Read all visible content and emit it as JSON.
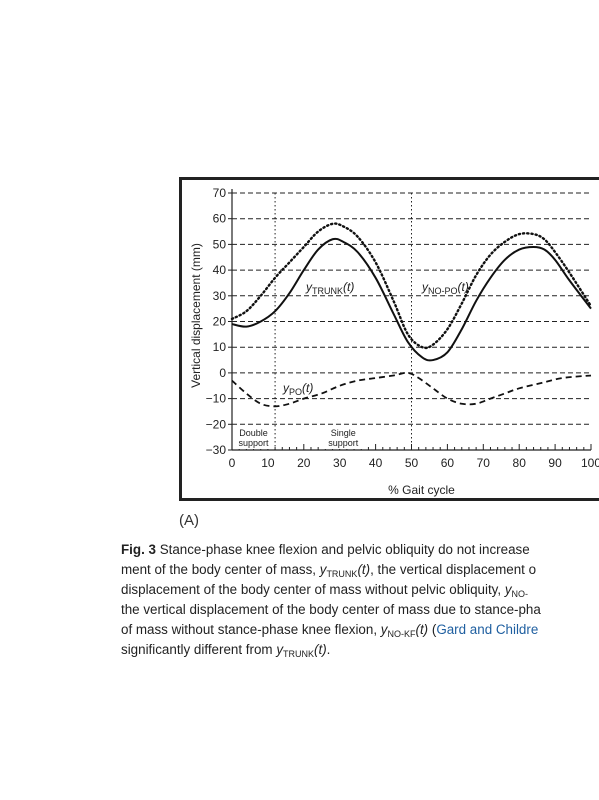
{
  "figure": {
    "panel_label": "(A)",
    "xlabel": "% Gait cycle",
    "ylabel": "Vertical displacement (mm)",
    "phase_labels": [
      {
        "line1": "Double",
        "line2": "support"
      },
      {
        "line1": "Single",
        "line2": "support"
      }
    ],
    "series_labels": {
      "trunk": {
        "main": "y",
        "sub": "TRUNK",
        "tail": "(t)"
      },
      "no_po": {
        "main": "y",
        "sub": "NO-PO",
        "tail": "(t)"
      },
      "po": {
        "main": "y",
        "sub": "PO",
        "tail": "(t)"
      }
    }
  },
  "chart_data": {
    "type": "line",
    "xlabel": "% Gait cycle",
    "ylabel": "Vertical displacement (mm)",
    "xlim": [
      0,
      100
    ],
    "ylim": [
      -30,
      70
    ],
    "xticks": [
      "0",
      "10",
      "20",
      "30",
      "40",
      "50",
      "60",
      "70",
      "80",
      "90",
      "100"
    ],
    "yticks": [
      "70",
      "60",
      "50",
      "40",
      "30",
      "20",
      "10",
      "0",
      "−10",
      "−20",
      "−30"
    ],
    "grid": true,
    "vertical_markers": [
      12,
      50
    ],
    "series": [
      {
        "name": "yTRUNK(t)",
        "style": "solid",
        "x": [
          0,
          4,
          8,
          12,
          16,
          20,
          24,
          28,
          31,
          35,
          40,
          45,
          49,
          53,
          56,
          60,
          64,
          68,
          72,
          76,
          80,
          84,
          87,
          90,
          94,
          100
        ],
        "y": [
          19,
          18,
          20,
          24,
          31,
          40,
          48,
          52,
          51,
          47,
          37,
          23,
          12,
          6,
          5,
          8,
          17,
          28,
          37,
          44,
          48,
          49,
          48,
          44,
          36,
          25
        ]
      },
      {
        "name": "yNO-PO(t)",
        "style": "dotted",
        "x": [
          0,
          4,
          8,
          12,
          16,
          20,
          24,
          28,
          31,
          35,
          40,
          45,
          49,
          53,
          56,
          60,
          64,
          68,
          72,
          76,
          80,
          84,
          87,
          90,
          94,
          100
        ],
        "y": [
          21,
          24,
          30,
          37,
          43,
          49,
          55,
          58,
          57,
          53,
          43,
          28,
          15,
          10,
          11,
          17,
          27,
          38,
          46,
          51,
          54,
          54,
          52,
          47,
          39,
          26
        ]
      },
      {
        "name": "yPO(t)",
        "style": "dashed",
        "x": [
          0,
          4,
          8,
          12,
          16,
          20,
          25,
          30,
          35,
          40,
          45,
          49,
          52,
          56,
          60,
          64,
          68,
          72,
          76,
          80,
          86,
          92,
          100
        ],
        "y": [
          -3,
          -8,
          -12,
          -13,
          -12,
          -10,
          -8,
          -5,
          -3,
          -2,
          -1,
          0,
          -2,
          -6,
          -10,
          -12,
          -12,
          -10,
          -8,
          -6,
          -4,
          -2,
          -1
        ]
      }
    ]
  },
  "caption": {
    "lines": [
      [
        {
          "t": "Fig. 3",
          "s": "bold"
        },
        {
          "t": "  Stance-phase knee flexion and pelvic obliquity do not increase",
          "s": ""
        }
      ],
      [
        {
          "t": "ment of the body center of mass, ",
          "s": ""
        },
        {
          "t": "y",
          "s": "ital"
        },
        {
          "t": "TRUNK",
          "s": "sub"
        },
        {
          "t": "(t)",
          "s": "ital"
        },
        {
          "t": ", the vertical displacement o",
          "s": ""
        }
      ],
      [
        {
          "t": "displacement of the body center of mass without pelvic obliquity, ",
          "s": ""
        },
        {
          "t": "y",
          "s": "ital"
        },
        {
          "t": "NO-",
          "s": "sub"
        }
      ],
      [
        {
          "t": "the vertical displacement of the body center of mass due to stance-pha",
          "s": ""
        }
      ],
      [
        {
          "t": "of mass without stance-phase knee flexion, ",
          "s": ""
        },
        {
          "t": "y",
          "s": "ital"
        },
        {
          "t": "NO-KF",
          "s": "sub"
        },
        {
          "t": "(t)",
          "s": "ital"
        },
        {
          "t": " (",
          "s": ""
        },
        {
          "t": "Gard and Childre",
          "s": "link"
        }
      ],
      [
        {
          "t": "significantly different from ",
          "s": ""
        },
        {
          "t": "y",
          "s": "ital"
        },
        {
          "t": "TRUNK",
          "s": "sub"
        },
        {
          "t": "(t)",
          "s": "ital"
        },
        {
          "t": ".",
          "s": ""
        }
      ]
    ]
  }
}
